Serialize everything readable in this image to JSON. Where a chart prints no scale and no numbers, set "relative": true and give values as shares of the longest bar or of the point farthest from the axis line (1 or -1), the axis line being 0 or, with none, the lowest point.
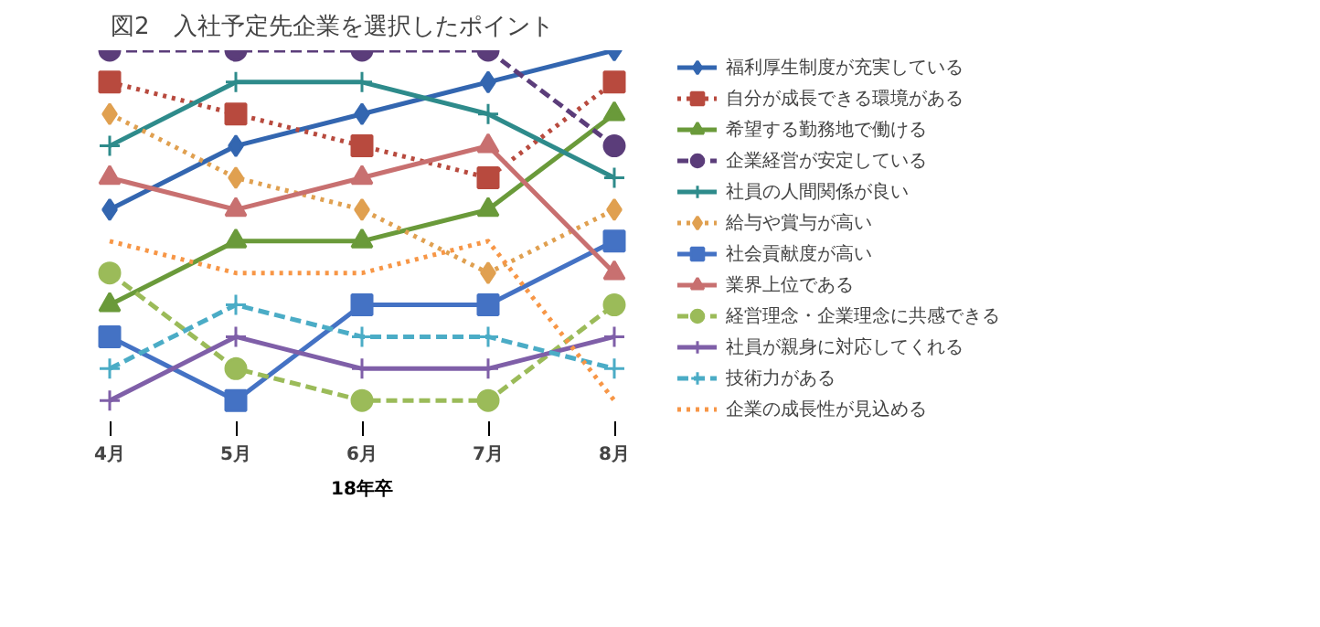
{
  "chart_data": {
    "type": "line",
    "title": "図2　入社予定先企業を選択したポイント",
    "xlabel": "18年卒",
    "categories": [
      "4月",
      "5月",
      "6月",
      "7月",
      "8月"
    ],
    "relative": true,
    "legend": "right",
    "series": [
      {
        "name": "福利厚生制度が充実している",
        "color": "#3366b0",
        "marker": "diamond",
        "line_style": "solid",
        "values": [
          0.545,
          0.727,
          0.818,
          0.909,
          1
        ]
      },
      {
        "name": "自分が成長できる環境がある",
        "color": "#b84a3e",
        "marker": "square",
        "line_style": "dotted",
        "values": [
          0.909,
          0.818,
          0.727,
          0.636,
          0.909
        ]
      },
      {
        "name": "希望する勤務地で働ける",
        "color": "#6a9a3a",
        "marker": "triangle",
        "line_style": "solid",
        "values": [
          0.273,
          0.455,
          0.455,
          0.545,
          0.818
        ]
      },
      {
        "name": "企業経営が安定している",
        "color": "#5b3d7a",
        "marker": "circle",
        "line_style": "dashed",
        "values": [
          1,
          1,
          1,
          1,
          0.727
        ]
      },
      {
        "name": "社員の人間関係が良い",
        "color": "#2e8b8b",
        "marker": "cross",
        "line_style": "solid",
        "values": [
          0.727,
          0.909,
          0.909,
          0.818,
          0.636
        ]
      },
      {
        "name": "給与や賞与が高い",
        "color": "#e0a050",
        "marker": "diamond",
        "line_style": "dotted",
        "values": [
          0.818,
          0.636,
          0.545,
          0.364,
          0.545
        ]
      },
      {
        "name": "社会貢献度が高い",
        "color": "#4472c4",
        "marker": "square",
        "line_style": "solid",
        "values": [
          0.182,
          0,
          0.273,
          0.273,
          0.455
        ]
      },
      {
        "name": "業界上位である",
        "color": "#c87070",
        "marker": "triangle",
        "line_style": "solid",
        "values": [
          0.636,
          0.545,
          0.636,
          0.727,
          0.364
        ]
      },
      {
        "name": "経営理念・企業理念に共感できる",
        "color": "#9bbb59",
        "marker": "circle",
        "line_style": "dashed",
        "values": [
          0.364,
          0.091,
          0,
          0,
          0.273
        ]
      },
      {
        "name": "社員が親身に対応してくれる",
        "color": "#7f5fa8",
        "marker": "cross",
        "line_style": "solid",
        "values": [
          0,
          0.182,
          0.091,
          0.091,
          0.182
        ]
      },
      {
        "name": "技術力がある",
        "color": "#4bacc6",
        "marker": "cross",
        "line_style": "dashed",
        "values": [
          0.091,
          0.273,
          0.182,
          0.182,
          0.091
        ]
      },
      {
        "name": "企業の成長性が見込める",
        "color": "#f79646",
        "marker": "none",
        "line_style": "dotted",
        "values": [
          0.455,
          0.364,
          0.364,
          0.455,
          0
        ]
      }
    ]
  }
}
